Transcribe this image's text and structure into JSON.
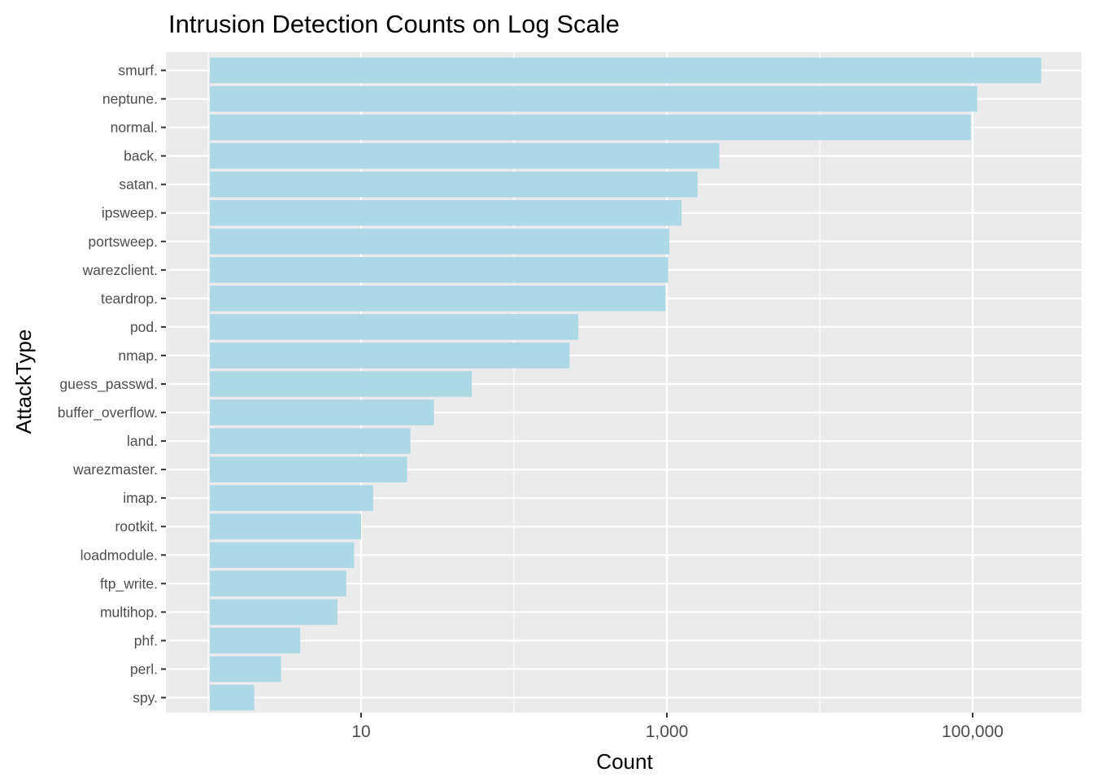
{
  "chart_data": {
    "type": "bar",
    "orientation": "horizontal",
    "title": "Intrusion Detection Counts on Log Scale",
    "xlabel": "Count",
    "ylabel": "AttackType",
    "x_scale": "log10",
    "xlim": [
      1,
      500000
    ],
    "x_ticks": [
      {
        "value": 10,
        "label": "10"
      },
      {
        "value": 1000,
        "label": "1,000"
      },
      {
        "value": 100000,
        "label": "100,000"
      }
    ],
    "categories": [
      "smurf.",
      "neptune.",
      "normal.",
      "back.",
      "satan.",
      "ipsweep.",
      "portsweep.",
      "warezclient.",
      "teardrop.",
      "pod.",
      "nmap.",
      "guess_passwd.",
      "buffer_overflow.",
      "land.",
      "warezmaster.",
      "imap.",
      "rootkit.",
      "loadmodule.",
      "ftp_write.",
      "multihop.",
      "phf.",
      "perl.",
      "spy."
    ],
    "values": [
      280790,
      107201,
      97278,
      2203,
      1589,
      1247,
      1040,
      1020,
      979,
      264,
      231,
      53,
      30,
      21,
      20,
      12,
      10,
      9,
      8,
      7,
      4,
      3,
      2
    ],
    "bar_color": "#add8e6",
    "panel_background": "#ebebeb",
    "grid_color": "#ffffff",
    "grid": true,
    "legend": "none"
  }
}
